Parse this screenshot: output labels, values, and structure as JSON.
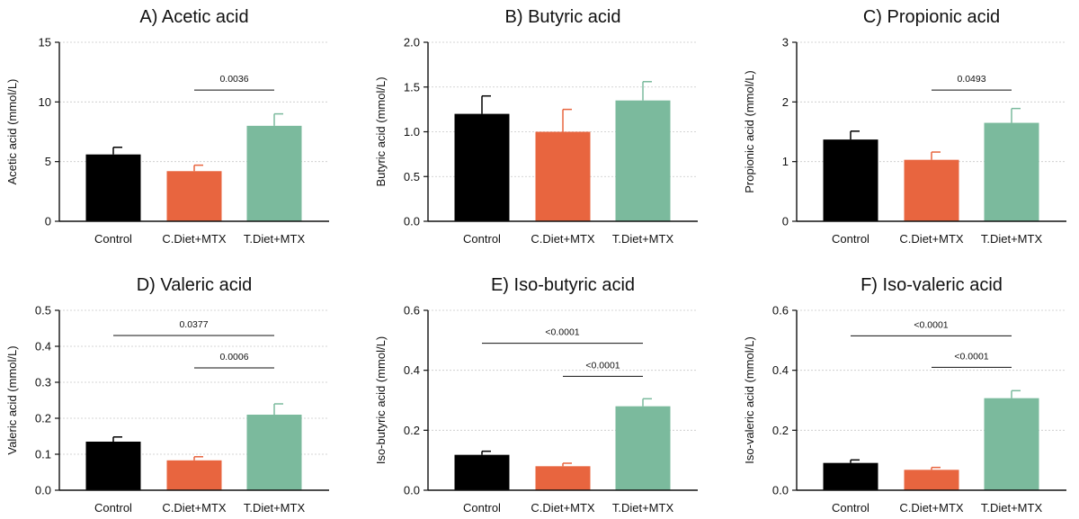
{
  "colors": {
    "Control": "#000000",
    "C.Diet+MTX": "#e8653f",
    "T.Diet+MTX": "#7bba9d",
    "grid": "#c8c8c8",
    "axis": "#111111"
  },
  "chart_data": [
    {
      "type": "bar",
      "title": "A) Acetic acid",
      "ylabel": "Acetic acid (mmol/L)",
      "categories": [
        "Control",
        "C.Diet+MTX",
        "T.Diet+MTX"
      ],
      "values": [
        5.6,
        4.2,
        8.0
      ],
      "errors": [
        0.6,
        0.5,
        1.0
      ],
      "ylim": [
        0,
        15
      ],
      "yticks": [
        0,
        5,
        10,
        15
      ],
      "yticklabels": [
        "0",
        "5",
        "10",
        "15"
      ],
      "grid": true,
      "significance": [
        {
          "from": 1,
          "to": 2,
          "label": "0.0036",
          "y": 11.0
        }
      ]
    },
    {
      "type": "bar",
      "title": "B) Butyric acid",
      "ylabel": "Butyric acid (mmol/L)",
      "categories": [
        "Control",
        "C.Diet+MTX",
        "T.Diet+MTX"
      ],
      "values": [
        1.2,
        1.0,
        1.35
      ],
      "errors": [
        0.2,
        0.25,
        0.21
      ],
      "ylim": [
        0,
        2.0
      ],
      "yticks": [
        0,
        0.5,
        1.0,
        1.5,
        2.0
      ],
      "yticklabels": [
        "0.0",
        "0.5",
        "1.0",
        "1.5",
        "2.0"
      ],
      "grid": true,
      "significance": []
    },
    {
      "type": "bar",
      "title": "C) Propionic acid",
      "ylabel": "Propionic acid (mmol/L)",
      "categories": [
        "Control",
        "C.Diet+MTX",
        "T.Diet+MTX"
      ],
      "values": [
        1.37,
        1.03,
        1.65
      ],
      "errors": [
        0.14,
        0.13,
        0.24
      ],
      "ylim": [
        0,
        3
      ],
      "yticks": [
        0,
        1,
        2,
        3
      ],
      "yticklabels": [
        "0",
        "1",
        "2",
        "3"
      ],
      "grid": true,
      "significance": [
        {
          "from": 1,
          "to": 2,
          "label": "0.0493",
          "y": 2.2
        }
      ]
    },
    {
      "type": "bar",
      "title": "D) Valeric acid",
      "ylabel": "Valeric acid (mmol/L)",
      "categories": [
        "Control",
        "C.Diet+MTX",
        "T.Diet+MTX"
      ],
      "values": [
        0.135,
        0.083,
        0.21
      ],
      "errors": [
        0.013,
        0.01,
        0.03
      ],
      "ylim": [
        0,
        0.5
      ],
      "yticks": [
        0,
        0.1,
        0.2,
        0.3,
        0.4,
        0.5
      ],
      "yticklabels": [
        "0.0",
        "0.1",
        "0.2",
        "0.3",
        "0.4",
        "0.5"
      ],
      "grid": true,
      "significance": [
        {
          "from": 0,
          "to": 2,
          "label": "0.0377",
          "y": 0.43
        },
        {
          "from": 1,
          "to": 2,
          "label": "0.0006",
          "y": 0.34
        }
      ]
    },
    {
      "type": "bar",
      "title": "E) Iso-butyric acid",
      "ylabel": "Iso-butyric acid (mmol/L)",
      "categories": [
        "Control",
        "C.Diet+MTX",
        "T.Diet+MTX"
      ],
      "values": [
        0.118,
        0.08,
        0.28
      ],
      "errors": [
        0.012,
        0.01,
        0.025
      ],
      "ylim": [
        0,
        0.6
      ],
      "yticks": [
        0,
        0.2,
        0.4,
        0.6
      ],
      "yticklabels": [
        "0.0",
        "0.2",
        "0.4",
        "0.6"
      ],
      "grid": true,
      "significance": [
        {
          "from": 0,
          "to": 2,
          "label": "<0.0001",
          "y": 0.49
        },
        {
          "from": 1,
          "to": 2,
          "label": "<0.0001",
          "y": 0.38
        }
      ]
    },
    {
      "type": "bar",
      "title": "F) Iso-valeric acid",
      "ylabel": "Iso-valeric acid (mmol/L)",
      "categories": [
        "Control",
        "C.Diet+MTX",
        "T.Diet+MTX"
      ],
      "values": [
        0.091,
        0.068,
        0.307
      ],
      "errors": [
        0.01,
        0.008,
        0.025
      ],
      "ylim": [
        0,
        0.6
      ],
      "yticks": [
        0,
        0.2,
        0.4,
        0.6
      ],
      "yticklabels": [
        "0.0",
        "0.2",
        "0.4",
        "0.6"
      ],
      "grid": true,
      "significance": [
        {
          "from": 0,
          "to": 2,
          "label": "<0.0001",
          "y": 0.515
        },
        {
          "from": 1,
          "to": 2,
          "label": "<0.0001",
          "y": 0.41
        }
      ]
    }
  ]
}
